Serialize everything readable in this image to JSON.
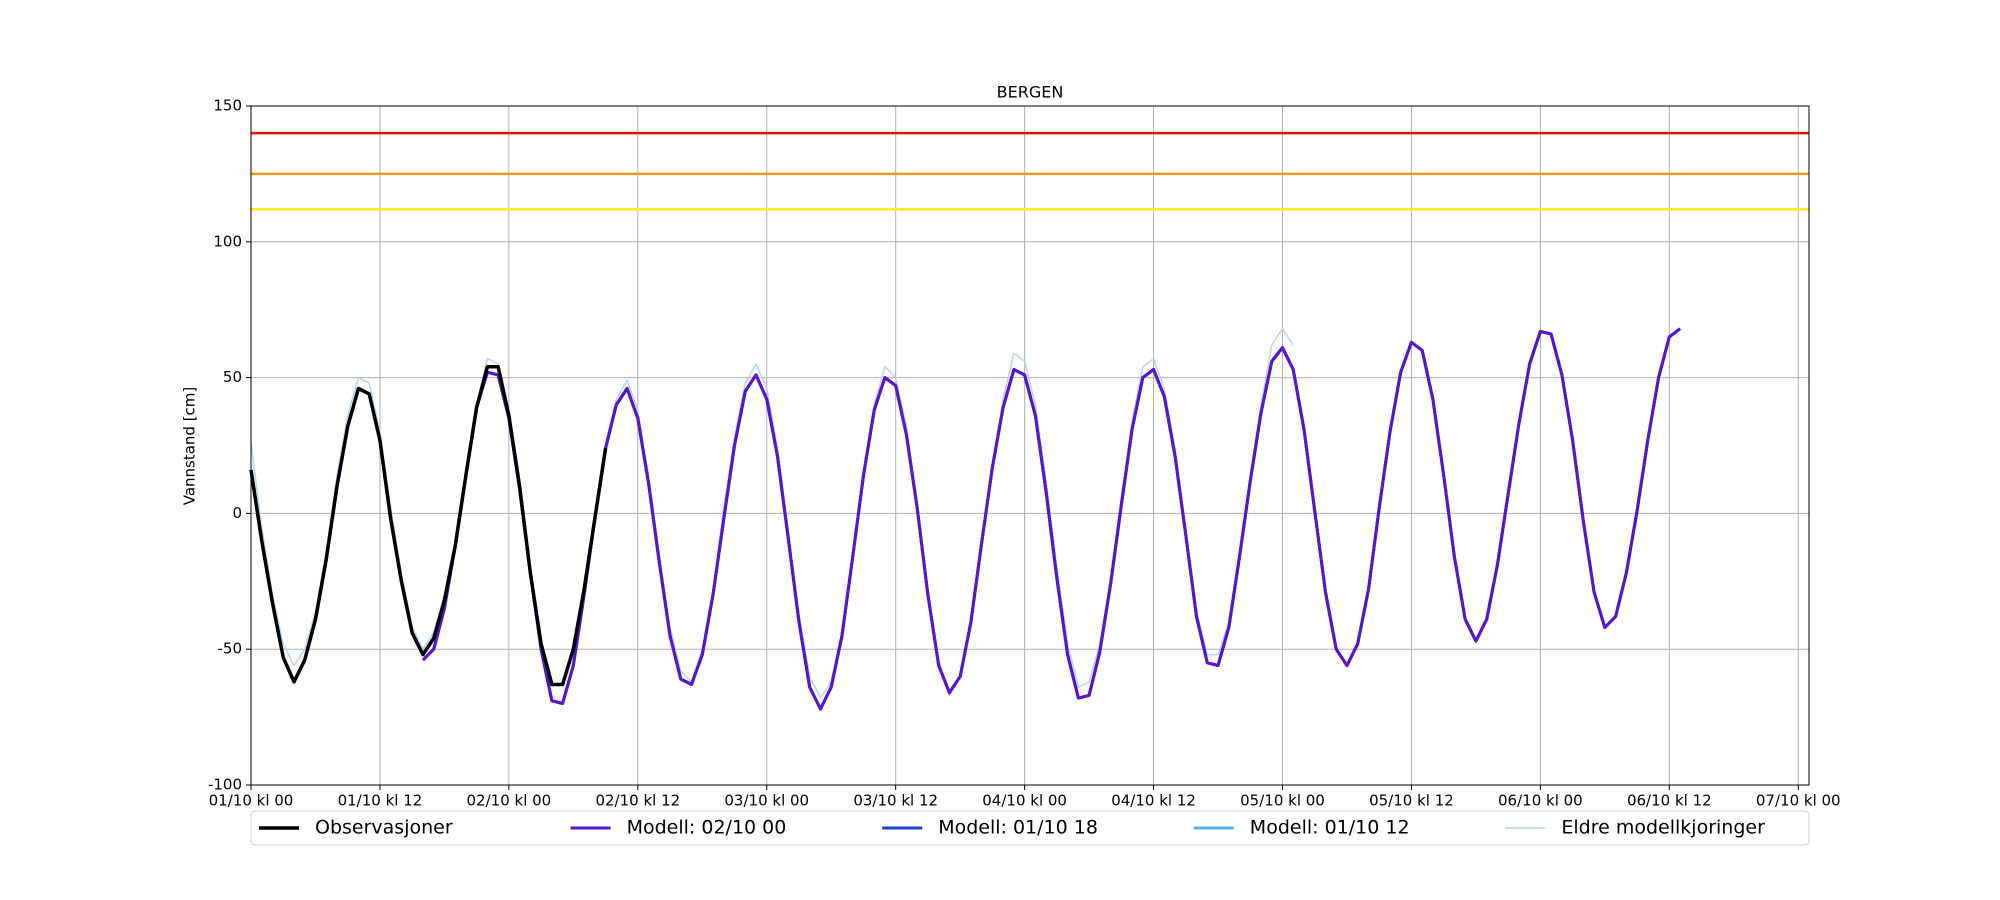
{
  "chart_data": {
    "type": "line",
    "title": "BERGEN",
    "ylabel": "Vannstand [cm]",
    "x": [
      0,
      1,
      2,
      3,
      4,
      5,
      6,
      7,
      8,
      9,
      10,
      11,
      12,
      13,
      14,
      15,
      16,
      17,
      18,
      19,
      20,
      21,
      22,
      23,
      24,
      25,
      26,
      27,
      28,
      29,
      30,
      31,
      32,
      33,
      34,
      35,
      36,
      37,
      38,
      39,
      40,
      41,
      42,
      43,
      44,
      45,
      46,
      47,
      48,
      49,
      50,
      51,
      52,
      53,
      54,
      55,
      56,
      57,
      58,
      59,
      60,
      61,
      62,
      63,
      64,
      65,
      66,
      67,
      68,
      69,
      70,
      71,
      72,
      73,
      74,
      75,
      76,
      77,
      78,
      79,
      80,
      81,
      82,
      83,
      84,
      85,
      86,
      87,
      88,
      89,
      90,
      91,
      92,
      93,
      94,
      95,
      96,
      97,
      98,
      99,
      100,
      101,
      102,
      103,
      104,
      105,
      106,
      107,
      108,
      109,
      110,
      111,
      112,
      113,
      114,
      115,
      116,
      117,
      118,
      119,
      120,
      121,
      122,
      123,
      124,
      125,
      126,
      127,
      128,
      129,
      130,
      131,
      132,
      133
    ],
    "xlim": [
      0,
      145
    ],
    "xticks": [
      {
        "value": 0,
        "label": "01/10 kl 00"
      },
      {
        "value": 12,
        "label": "01/10 kl 12"
      },
      {
        "value": 24,
        "label": "02/10 kl 00"
      },
      {
        "value": 36,
        "label": "02/10 kl 12"
      },
      {
        "value": 48,
        "label": "03/10 kl 00"
      },
      {
        "value": 60,
        "label": "03/10 kl 12"
      },
      {
        "value": 72,
        "label": "04/10 kl 00"
      },
      {
        "value": 84,
        "label": "04/10 kl 12"
      },
      {
        "value": 96,
        "label": "05/10 kl 00"
      },
      {
        "value": 108,
        "label": "05/10 kl 12"
      },
      {
        "value": 120,
        "label": "06/10 kl 00"
      },
      {
        "value": 132,
        "label": "06/10 kl 12"
      },
      {
        "value": 144,
        "label": "07/10 kl 00"
      }
    ],
    "ylim": [
      -100,
      150
    ],
    "yticks": [
      -100,
      -50,
      0,
      50,
      100,
      150
    ],
    "grid": true,
    "thresholds": [
      {
        "value": 140,
        "color": "#e8110f"
      },
      {
        "value": 125,
        "color": "#f5962a"
      },
      {
        "value": 112,
        "color": "#f5f01a"
      }
    ],
    "series": [
      {
        "name": "Observasjoner",
        "color": "#000000",
        "width": 3.5,
        "values": [
          16,
          -10,
          -33,
          -53,
          -62,
          -54,
          -39,
          -17,
          10,
          32,
          46,
          44,
          27,
          -2,
          -25,
          -44,
          -52,
          -46,
          -32,
          -12,
          14,
          39,
          54,
          54,
          36,
          10,
          -22,
          -48,
          -63,
          -63,
          -50,
          -28,
          -2,
          24,
          null,
          null,
          null,
          null,
          null,
          null,
          null,
          null,
          null,
          null,
          null,
          null,
          null,
          null,
          null,
          null,
          null,
          null,
          null,
          null,
          null,
          null,
          null,
          null,
          null,
          null,
          null,
          null,
          null,
          null,
          null,
          null,
          null,
          null,
          null,
          null,
          null,
          null,
          null,
          null,
          null,
          null,
          null,
          null,
          null,
          null,
          null,
          null,
          null,
          null,
          null,
          null,
          null,
          null,
          null,
          null,
          null,
          null,
          null,
          null,
          null,
          null,
          null,
          null,
          null,
          null,
          null,
          null,
          null,
          null,
          null,
          null,
          null,
          null,
          null,
          null,
          null,
          null,
          null,
          null,
          null,
          null,
          null,
          null,
          null,
          null,
          null,
          null,
          null,
          null,
          null,
          null,
          null,
          null,
          null,
          null,
          null,
          null,
          null,
          null
        ]
      },
      {
        "name": "Modell: 02/10 00",
        "color": "#5a12d2",
        "width": 3,
        "values": [
          null,
          null,
          null,
          null,
          null,
          null,
          null,
          null,
          null,
          null,
          null,
          null,
          null,
          null,
          null,
          null,
          -54,
          -50,
          -35,
          -12,
          14,
          39,
          52,
          51,
          35,
          9,
          -22,
          -50,
          -69,
          -70,
          -56,
          -30,
          -2,
          24,
          40,
          46,
          35,
          11,
          -18,
          -45,
          -61,
          -63,
          -52,
          -30,
          -2,
          25,
          45,
          51,
          42,
          21,
          -9,
          -40,
          -64,
          -72,
          -64,
          -45,
          -16,
          14,
          38,
          50,
          47,
          29,
          2,
          -30,
          -56,
          -66,
          -60,
          -40,
          -11,
          17,
          39,
          53,
          51,
          36,
          8,
          -24,
          -52,
          -68,
          -67,
          -51,
          -26,
          3,
          31,
          50,
          53,
          43,
          21,
          -8,
          -38,
          -55,
          -56,
          -42,
          -16,
          12,
          37,
          56,
          61,
          53,
          31,
          1,
          -29,
          -50,
          -56,
          -48,
          -28,
          2,
          30,
          52,
          63,
          60,
          42,
          14,
          -16,
          -39,
          -47,
          -39,
          -19,
          7,
          33,
          55,
          67,
          66,
          51,
          27,
          -3,
          -29,
          -42,
          -38,
          -22,
          1,
          27,
          50,
          65,
          68
        ]
      },
      {
        "name": "Modell: 01/10 18",
        "color": "#1f3fd0",
        "width": 3,
        "values": [
          null,
          null,
          null,
          null,
          null,
          null,
          null,
          null,
          null,
          null,
          null,
          null,
          null,
          null,
          null,
          null,
          -54,
          -50,
          -35,
          -12,
          14,
          39,
          52,
          51,
          35,
          9,
          -22,
          -50,
          -69,
          -70,
          -56,
          -30,
          -2,
          24,
          40,
          46,
          35,
          11,
          -18,
          -45,
          -61,
          -63,
          -52,
          -30,
          -2,
          25,
          45,
          51,
          42,
          21,
          -9,
          -40,
          -64,
          -72,
          -64,
          -45,
          -16,
          14,
          38,
          50,
          47,
          29,
          2,
          -30,
          -56,
          -66,
          -60,
          -40,
          -11,
          17,
          39,
          53,
          51,
          36,
          8,
          -24,
          -52,
          -68,
          -67,
          -51,
          -26,
          3,
          31,
          50,
          53,
          43,
          21,
          -8,
          -38,
          -55,
          -56,
          -42,
          -16,
          12,
          37,
          56,
          61,
          53,
          31,
          1,
          -29,
          -50,
          -56,
          -48,
          -28,
          2,
          30,
          52,
          63,
          60,
          42,
          14,
          -16,
          -39,
          -47,
          -39,
          -19,
          7,
          33,
          55,
          67,
          66,
          51,
          27,
          -3,
          -29,
          -42,
          -38,
          -22,
          1,
          27,
          50,
          65,
          68
        ]
      },
      {
        "name": "Modell: 01/10 12",
        "color": "#5aaef0",
        "width": 3,
        "values": [
          null,
          null,
          null,
          null,
          null,
          null,
          null,
          null,
          null,
          null,
          null,
          null,
          null,
          null,
          null,
          null,
          -54,
          -50,
          -35,
          -12,
          14,
          39,
          52,
          51,
          35,
          9,
          -22,
          -50,
          -69,
          -70,
          -56,
          -30,
          -2,
          24,
          40,
          46,
          35,
          11,
          -18,
          -45,
          -61,
          -63,
          -52,
          -30,
          -2,
          25,
          45,
          51,
          42,
          21,
          -9,
          -40,
          -64,
          -72,
          -64,
          -45,
          -16,
          14,
          38,
          50,
          47,
          29,
          2,
          -30,
          -56,
          -66,
          -60,
          -40,
          -11,
          17,
          39,
          53,
          51,
          36,
          8,
          -24,
          -52,
          -68,
          -67,
          -51,
          -26,
          3,
          31,
          50,
          53,
          43,
          21,
          -8,
          -38,
          -55,
          -56,
          -42,
          -16,
          12,
          37,
          56,
          61,
          53,
          31,
          1,
          -29,
          -50,
          -56,
          -48,
          -28,
          2,
          30,
          52,
          63,
          60,
          42,
          14,
          -16,
          -39,
          -47,
          -39,
          -19,
          7,
          33,
          55,
          67,
          66,
          51,
          27,
          -3,
          -29,
          -42,
          -38,
          -22,
          1,
          27,
          50,
          65,
          68
        ]
      },
      {
        "name": "Eldre modellkjoringer",
        "color": "#b8d4f5",
        "width": 1.5,
        "values": [
          26,
          -5,
          -30,
          -48,
          -56,
          -50,
          -36,
          -14,
          14,
          36,
          50,
          48,
          30,
          2,
          -22,
          -42,
          -50,
          -44,
          -30,
          -10,
          16,
          40,
          57,
          55,
          38,
          12,
          -20,
          -48,
          -68,
          -70,
          -55,
          -28,
          0,
          26,
          42,
          49,
          38,
          14,
          -15,
          -42,
          -58,
          -62,
          -50,
          -28,
          2,
          28,
          48,
          55,
          46,
          24,
          -6,
          -37,
          -60,
          -68,
          -62,
          -44,
          -14,
          16,
          40,
          54,
          50,
          32,
          4,
          -28,
          -54,
          -67,
          -60,
          -42,
          -12,
          18,
          42,
          59,
          56,
          40,
          12,
          -20,
          -48,
          -64,
          -62,
          -48,
          -24,
          6,
          34,
          54,
          57,
          46,
          24,
          -6,
          -36,
          -52,
          -52,
          -40,
          -14,
          14,
          40,
          62,
          68,
          62,
          null,
          null,
          null,
          null,
          null,
          null,
          null,
          null,
          null,
          null,
          null,
          null,
          null,
          null,
          null,
          null,
          null,
          null,
          null,
          null,
          null,
          null,
          null,
          null,
          null,
          null,
          null,
          null,
          null,
          null,
          null,
          null,
          null,
          null,
          null,
          null
        ]
      }
    ]
  }
}
